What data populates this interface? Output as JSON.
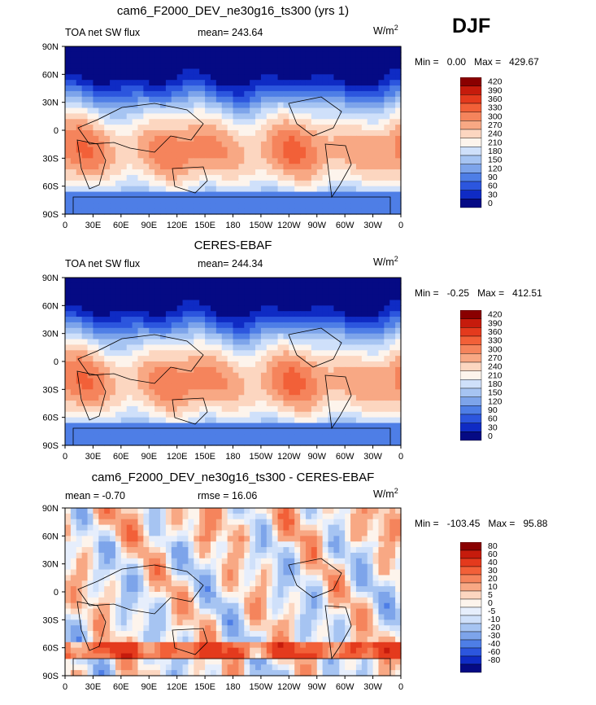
{
  "season": "DJF",
  "units_main": "W/m",
  "units_sup": "2",
  "lat_ticks": [
    "90N",
    "60N",
    "30N",
    "0",
    "30S",
    "60S",
    "90S"
  ],
  "lon_ticks": [
    "0",
    "30E",
    "60E",
    "90E",
    "120E",
    "150E",
    "180",
    "150W",
    "120W",
    "90W",
    "60W",
    "30W",
    "0"
  ],
  "chart_data": [
    {
      "type": "heatmap",
      "title": "cam6_F2000_DEV_ne30g16_ts300 (yrs 1)",
      "variable": "TOA net SW flux",
      "stat": "mean= 243.64",
      "min_label": "Min =",
      "min_value": "0.00",
      "max_label": "Max =",
      "max_value": "429.67",
      "colorbar_levels": [
        "420",
        "390",
        "360",
        "330",
        "300",
        "270",
        "240",
        "210",
        "180",
        "150",
        "120",
        "90",
        "60",
        "30",
        "0"
      ],
      "colorbar_colors": [
        "#8a0000",
        "#c61b0c",
        "#e43a1d",
        "#f26038",
        "#f5845c",
        "#f8a884",
        "#fcd6c0",
        "#fdf4ec",
        "#cfe0fa",
        "#a6c4f2",
        "#7da4ea",
        "#4e7ee6",
        "#2c56de",
        "#0f2bc4",
        "#050a84"
      ]
    },
    {
      "type": "heatmap",
      "title": "CERES-EBAF",
      "variable": "TOA net SW flux",
      "stat": "mean= 244.34",
      "min_label": "Min =",
      "min_value": "-0.25",
      "max_label": "Max =",
      "max_value": "412.51",
      "colorbar_levels": [
        "420",
        "390",
        "360",
        "330",
        "300",
        "270",
        "240",
        "210",
        "180",
        "150",
        "120",
        "90",
        "60",
        "30",
        "0"
      ],
      "colorbar_colors": [
        "#8a0000",
        "#c61b0c",
        "#e43a1d",
        "#f26038",
        "#f5845c",
        "#f8a884",
        "#fcd6c0",
        "#fdf4ec",
        "#cfe0fa",
        "#a6c4f2",
        "#7da4ea",
        "#4e7ee6",
        "#2c56de",
        "#0f2bc4",
        "#050a84"
      ]
    },
    {
      "type": "heatmap",
      "title": "cam6_F2000_DEV_ne30g16_ts300 - CERES-EBAF",
      "variable": "mean =   -0.70",
      "stat": "rmse =    16.06",
      "min_label": "Min =",
      "min_value": "-103.45",
      "max_label": "Max =",
      "max_value": "95.88",
      "colorbar_levels": [
        "80",
        "60",
        "40",
        "30",
        "20",
        "10",
        "5",
        "0",
        "-5",
        "-10",
        "-20",
        "-30",
        "-40",
        "-60",
        "-80"
      ],
      "colorbar_colors": [
        "#8a0000",
        "#c61b0c",
        "#e43a1d",
        "#f26038",
        "#f5845c",
        "#f8a884",
        "#fcd6c0",
        "#fdf4ec",
        "#e6eefc",
        "#cfe0fa",
        "#a6c4f2",
        "#7da4ea",
        "#4e7ee6",
        "#2c56de",
        "#0f2bc4",
        "#050a84"
      ]
    }
  ]
}
